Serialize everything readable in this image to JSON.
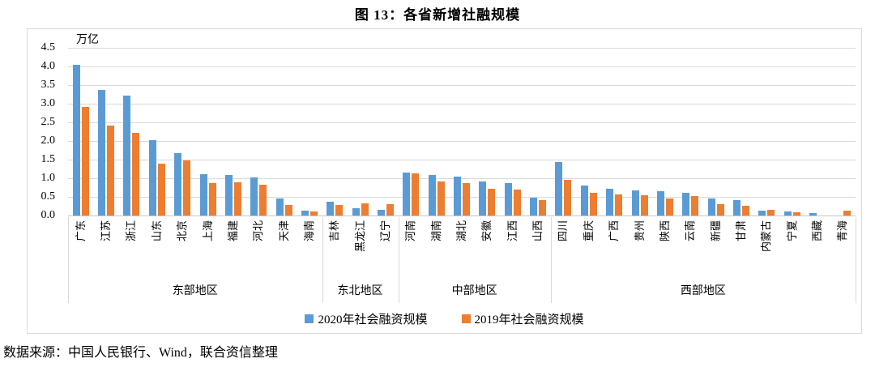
{
  "title": "图 13：各省新增社融规模",
  "source_note": "数据来源：中国人民银行、Wind，联合资信整理",
  "colors": {
    "series_2020": "#5b9bd5",
    "series_2019": "#ed7d31",
    "gridline": "#d9d9d9",
    "border": "#d9d9d9"
  },
  "chart_data": {
    "type": "bar",
    "title": "图 13：各省新增社融规模",
    "unit_label": "万亿",
    "ylim": [
      0,
      4.5
    ],
    "ytick_step": 0.5,
    "ytick_labels": [
      "4.5",
      "4.0",
      "3.5",
      "3.0",
      "2.5",
      "2.0",
      "1.5",
      "1.0",
      "0.5",
      "0.0"
    ],
    "grid": true,
    "legend_position": "bottom",
    "categories": [
      "广东",
      "江苏",
      "浙江",
      "山东",
      "北京",
      "上海",
      "福建",
      "河北",
      "天津",
      "海南",
      "吉林",
      "黑龙江",
      "辽宁",
      "河南",
      "湖南",
      "湖北",
      "安徽",
      "江西",
      "山西",
      "四川",
      "重庆",
      "广西",
      "贵州",
      "陕西",
      "云南",
      "新疆",
      "甘肃",
      "内蒙古",
      "宁夏",
      "西藏",
      "青海"
    ],
    "groups": [
      {
        "label": "东部地区",
        "count": 10
      },
      {
        "label": "东北地区",
        "count": 3
      },
      {
        "label": "中部地区",
        "count": 6
      },
      {
        "label": "西部地区",
        "count": 12
      }
    ],
    "series": [
      {
        "name": "2020年社会融资规模",
        "color": "#5b9bd5",
        "values": [
          4.05,
          3.38,
          3.22,
          2.02,
          1.67,
          1.1,
          1.08,
          1.02,
          0.46,
          0.13,
          0.37,
          0.2,
          0.16,
          1.16,
          1.08,
          1.04,
          0.92,
          0.87,
          0.48,
          1.43,
          0.8,
          0.72,
          0.67,
          0.65,
          0.61,
          0.46,
          0.41,
          0.13,
          0.11,
          0.06,
          0.0
        ]
      },
      {
        "name": "2019年社会融资规模",
        "color": "#ed7d31",
        "values": [
          2.92,
          2.42,
          2.22,
          1.4,
          1.48,
          0.88,
          0.9,
          0.83,
          0.29,
          0.1,
          0.29,
          0.32,
          0.31,
          1.14,
          0.91,
          0.88,
          0.72,
          0.7,
          0.42,
          0.96,
          0.61,
          0.56,
          0.54,
          0.46,
          0.52,
          0.3,
          0.26,
          0.15,
          0.09,
          0.0,
          0.13
        ]
      }
    ]
  }
}
